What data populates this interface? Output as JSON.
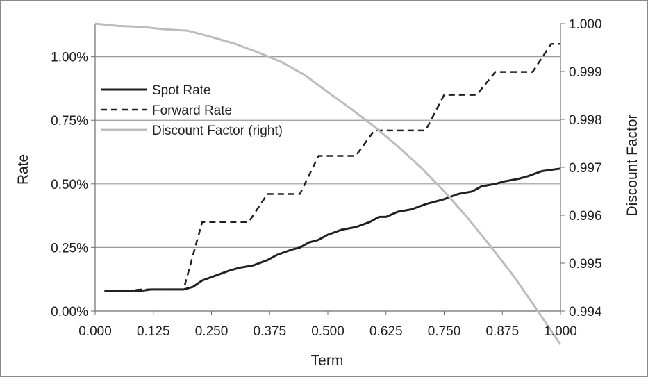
{
  "chart_data": {
    "type": "line",
    "xlabel": "Term",
    "ylabel_left": "Rate",
    "ylabel_right": "Discount Factor",
    "x_ticks": [
      "0.000",
      "0.125",
      "0.250",
      "0.375",
      "0.500",
      "0.625",
      "0.750",
      "0.875",
      "1.000"
    ],
    "y_left_ticks": [
      "0.00%",
      "0.25%",
      "0.50%",
      "0.75%",
      "1.00%"
    ],
    "y_right_ticks": [
      "0.994",
      "0.995",
      "0.996",
      "0.997",
      "0.998",
      "0.999",
      "1.000"
    ],
    "xlim": [
      0,
      1
    ],
    "ylim_left": [
      0,
      0.0113
    ],
    "ylim_right": [
      0.994,
      1.0
    ],
    "grid": "horizontal",
    "legend_position": "upper-left",
    "legend": [
      "Spot Rate",
      "Forward Rate",
      "Discount Factor (right)"
    ],
    "series": [
      {
        "name": "Spot Rate",
        "axis": "left",
        "color": "#231f20",
        "dash": "solid",
        "x": [
          0.02,
          0.1,
          0.12,
          0.19,
          0.21,
          0.23,
          0.26,
          0.29,
          0.31,
          0.34,
          0.37,
          0.39,
          0.42,
          0.44,
          0.46,
          0.48,
          0.5,
          0.53,
          0.56,
          0.59,
          0.61,
          0.625,
          0.65,
          0.68,
          0.71,
          0.73,
          0.75,
          0.78,
          0.81,
          0.83,
          0.86,
          0.88,
          0.91,
          0.93,
          0.96,
          1.0
        ],
        "values": [
          0.0008,
          0.0008,
          0.00085,
          0.00085,
          0.00095,
          0.0012,
          0.0014,
          0.0016,
          0.0017,
          0.0018,
          0.002,
          0.0022,
          0.0024,
          0.0025,
          0.0027,
          0.0028,
          0.003,
          0.0032,
          0.0033,
          0.0035,
          0.0037,
          0.0037,
          0.0039,
          0.004,
          0.0042,
          0.0043,
          0.0044,
          0.0046,
          0.0047,
          0.0049,
          0.005,
          0.0051,
          0.0052,
          0.0053,
          0.0055,
          0.0056
        ]
      },
      {
        "name": "Forward Rate",
        "axis": "left",
        "color": "#231f20",
        "dash": "dashed",
        "x": [
          0.02,
          0.07,
          0.1,
          0.19,
          0.23,
          0.33,
          0.37,
          0.44,
          0.48,
          0.56,
          0.6,
          0.71,
          0.75,
          0.82,
          0.86,
          0.94,
          0.98,
          1.0
        ],
        "values": [
          0.0008,
          0.0008,
          0.00085,
          0.00085,
          0.0035,
          0.0035,
          0.0046,
          0.0046,
          0.0061,
          0.0061,
          0.0071,
          0.0071,
          0.0085,
          0.0085,
          0.0094,
          0.0094,
          0.0105,
          0.0105
        ]
      },
      {
        "name": "Discount Factor (right)",
        "axis": "right",
        "color": "#bcbcbc",
        "dash": "solid",
        "x": [
          0.0,
          0.05,
          0.1,
          0.15,
          0.2,
          0.25,
          0.3,
          0.35,
          0.4,
          0.45,
          0.5,
          0.55,
          0.6,
          0.65,
          0.7,
          0.75,
          0.8,
          0.85,
          0.9,
          0.95,
          1.0
        ],
        "values": [
          1.0,
          0.99995,
          0.99993,
          0.99988,
          0.99985,
          0.99972,
          0.99958,
          0.9994,
          0.9992,
          0.99893,
          0.99857,
          0.99822,
          0.99785,
          0.99744,
          0.997,
          0.9965,
          0.99595,
          0.99535,
          0.99472,
          0.99402,
          0.9933
        ]
      }
    ]
  }
}
